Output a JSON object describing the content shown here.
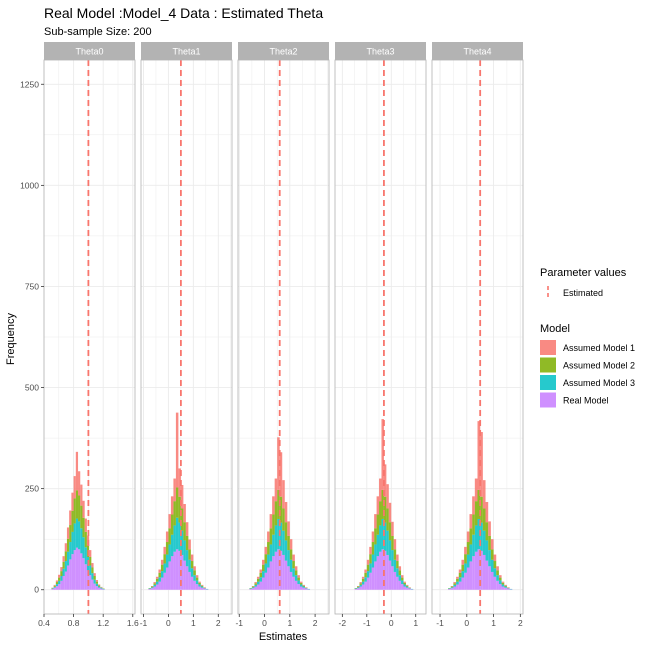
{
  "chart_data": {
    "type": "histogram",
    "title": "Real Model :Model_4 Data : Estimated Theta",
    "subtitle": "Sub-sample Size: 200",
    "xlabel": "Estimates",
    "ylabel": "Frequency",
    "ylim": [
      -60,
      1310
    ],
    "yticks": [
      0,
      250,
      500,
      750,
      1000,
      1250
    ],
    "grid": true,
    "stacked": true,
    "legend_placement": "right",
    "legend": {
      "parameter_title": "Parameter values",
      "parameter_entry": "Estimated",
      "model_title": "Model",
      "models": [
        "Assumed Model 1",
        "Assumed Model 2",
        "Assumed Model 3",
        "Real Model"
      ]
    },
    "colors": {
      "Assumed Model 1": "#F8766D",
      "Assumed Model 2": "#7CAE00",
      "Assumed Model 3": "#00BFC4",
      "Real Model": "#C77CFF",
      "Estimated": "#F8766D",
      "strip": "#B3B3B3",
      "strip_text": "#ffffff",
      "grid": "#EBEBEB",
      "panel_border": "#B3B3B3"
    },
    "panels": [
      {
        "name": "Theta0",
        "xlim": [
          0.4,
          1.63
        ],
        "xticks": [
          0.4,
          0.8,
          1.2,
          1.6
        ],
        "xtick_labels": [
          "0.4",
          "0.8",
          "1.2",
          "1.6"
        ],
        "estimated": 1.0,
        "bin_start": 0.5,
        "bin_width": 0.03,
        "series": [
          {
            "name": "Real Model",
            "values": [
              2,
              5,
              9,
              14,
              22,
              34,
              45,
              60,
              75,
              88,
              98,
              104,
              100,
              90,
              78,
              63,
              48,
              36,
              25,
              15,
              9,
              5,
              3,
              1
            ]
          },
          {
            "name": "Assumed Model 3",
            "values": [
              1,
              2,
              5,
              8,
              12,
              18,
              26,
              34,
              43,
              55,
              66,
              72,
              69,
              62,
              52,
              42,
              33,
              24,
              16,
              10,
              6,
              3,
              2,
              1
            ]
          },
          {
            "name": "Assumed Model 2",
            "values": [
              1,
              3,
              5,
              8,
              12,
              17,
              24,
              32,
              42,
              52,
              62,
              70,
              64,
              56,
              48,
              38,
              29,
              21,
              14,
              9,
              5,
              3,
              1,
              1
            ]
          },
          {
            "name": "Assumed Model 1",
            "values": [
              1,
              2,
              4,
              7,
              10,
              14,
              20,
              28,
              36,
              45,
              55,
              95,
              60,
              52,
              42,
              33,
              24,
              17,
              11,
              7,
              4,
              2,
              1,
              0
            ]
          }
        ]
      },
      {
        "name": "Theta1",
        "xlim": [
          -1.1,
          2.55
        ],
        "xticks": [
          -1,
          0,
          1,
          2
        ],
        "xtick_labels": [
          "-1",
          "0",
          "1",
          "2"
        ],
        "estimated": 0.5,
        "bin_start": -0.8,
        "bin_width": 0.1,
        "series": [
          {
            "name": "Real Model",
            "values": [
              2,
              4,
              8,
              13,
              20,
              30,
              42,
              55,
              70,
              83,
              94,
              100,
              96,
              86,
              72,
              58,
              44,
              32,
              22,
              14,
              8,
              5,
              3,
              1
            ]
          },
          {
            "name": "Assumed Model 3",
            "values": [
              1,
              2,
              4,
              7,
              11,
              16,
              23,
              32,
              42,
              53,
              65,
              78,
              70,
              60,
              50,
              40,
              30,
              21,
              14,
              9,
              5,
              3,
              1,
              1
            ]
          },
          {
            "name": "Assumed Model 2",
            "values": [
              1,
              2,
              4,
              7,
              11,
              16,
              23,
              31,
              40,
              50,
              60,
              75,
              64,
              55,
              45,
              35,
              26,
              18,
              12,
              7,
              4,
              2,
              1,
              0
            ]
          },
          {
            "name": "Assumed Model 1",
            "values": [
              0,
              1,
              3,
              5,
              8,
              12,
              18,
              26,
              35,
              45,
              56,
              185,
              70,
              58,
              45,
              34,
              24,
              16,
              10,
              6,
              3,
              2,
              1,
              0
            ]
          }
        ]
      },
      {
        "name": "Theta2",
        "xlim": [
          -1.05,
          2.55
        ],
        "xticks": [
          -1,
          0,
          1,
          2
        ],
        "xtick_labels": [
          "-1",
          "0",
          "1",
          "2"
        ],
        "estimated": 0.6,
        "bin_start": -0.6,
        "bin_width": 0.1,
        "series": [
          {
            "name": "Real Model",
            "values": [
              2,
              4,
              8,
              13,
              20,
              30,
              42,
              55,
              70,
              83,
              94,
              100,
              96,
              86,
              72,
              58,
              44,
              32,
              22,
              14,
              8,
              5,
              3,
              1
            ]
          },
          {
            "name": "Assumed Model 3",
            "values": [
              1,
              2,
              4,
              7,
              11,
              16,
              23,
              32,
              42,
              53,
              65,
              75,
              70,
              60,
              50,
              40,
              30,
              21,
              14,
              9,
              5,
              3,
              1,
              1
            ]
          },
          {
            "name": "Assumed Model 2",
            "values": [
              1,
              2,
              4,
              7,
              11,
              16,
              23,
              31,
              40,
              50,
              60,
              72,
              64,
              55,
              45,
              35,
              26,
              18,
              12,
              7,
              4,
              2,
              1,
              0
            ]
          },
          {
            "name": "Assumed Model 1",
            "values": [
              0,
              1,
              3,
              5,
              8,
              12,
              18,
              26,
              35,
              45,
              56,
              130,
              110,
              70,
              50,
              36,
              25,
              16,
              10,
              6,
              3,
              2,
              1,
              0
            ]
          }
        ]
      },
      {
        "name": "Theta3",
        "xlim": [
          -2.3,
          1.42
        ],
        "xticks": [
          -2,
          -1,
          0,
          1
        ],
        "xtick_labels": [
          "-2",
          "-1",
          "0",
          "1"
        ],
        "estimated": -0.3,
        "bin_start": -1.5,
        "bin_width": 0.1,
        "series": [
          {
            "name": "Real Model",
            "values": [
              2,
              4,
              8,
              13,
              20,
              30,
              42,
              55,
              70,
              83,
              94,
              100,
              96,
              86,
              72,
              58,
              44,
              32,
              22,
              14,
              8,
              5,
              3,
              1
            ]
          },
          {
            "name": "Assumed Model 3",
            "values": [
              1,
              2,
              4,
              7,
              11,
              16,
              23,
              32,
              42,
              53,
              65,
              75,
              70,
              60,
              50,
              40,
              30,
              21,
              14,
              9,
              5,
              3,
              1,
              1
            ]
          },
          {
            "name": "Assumed Model 2",
            "values": [
              1,
              2,
              4,
              7,
              11,
              16,
              23,
              31,
              40,
              50,
              60,
              72,
              64,
              55,
              45,
              35,
              26,
              18,
              12,
              7,
              4,
              2,
              1,
              0
            ]
          },
          {
            "name": "Assumed Model 1",
            "values": [
              0,
              1,
              3,
              5,
              8,
              12,
              18,
              26,
              35,
              45,
              56,
              175,
              80,
              60,
              48,
              35,
              25,
              16,
              10,
              6,
              3,
              2,
              1,
              0
            ]
          }
        ]
      },
      {
        "name": "Theta4",
        "xlim": [
          -1.3,
          2.1
        ],
        "xticks": [
          -1,
          0,
          1,
          2
        ],
        "xtick_labels": [
          "-1",
          "0",
          "1",
          "2"
        ],
        "estimated": 0.5,
        "bin_start": -0.7,
        "bin_width": 0.1,
        "series": [
          {
            "name": "Real Model",
            "values": [
              2,
              4,
              8,
              13,
              20,
              30,
              42,
              55,
              70,
              83,
              94,
              100,
              96,
              86,
              72,
              58,
              44,
              32,
              22,
              14,
              8,
              5,
              3,
              1
            ]
          },
          {
            "name": "Assumed Model 3",
            "values": [
              1,
              2,
              4,
              7,
              11,
              16,
              23,
              32,
              42,
              53,
              65,
              75,
              70,
              60,
              50,
              40,
              30,
              21,
              14,
              9,
              5,
              3,
              1,
              1
            ]
          },
          {
            "name": "Assumed Model 2",
            "values": [
              1,
              2,
              4,
              7,
              11,
              16,
              23,
              31,
              40,
              50,
              60,
              72,
              64,
              55,
              45,
              35,
              26,
              18,
              12,
              7,
              4,
              2,
              1,
              0
            ]
          },
          {
            "name": "Assumed Model 1",
            "values": [
              0,
              1,
              3,
              5,
              8,
              12,
              18,
              26,
              35,
              45,
              56,
              170,
              160,
              70,
              50,
              36,
              25,
              16,
              10,
              6,
              3,
              2,
              1,
              0
            ]
          }
        ]
      }
    ]
  }
}
